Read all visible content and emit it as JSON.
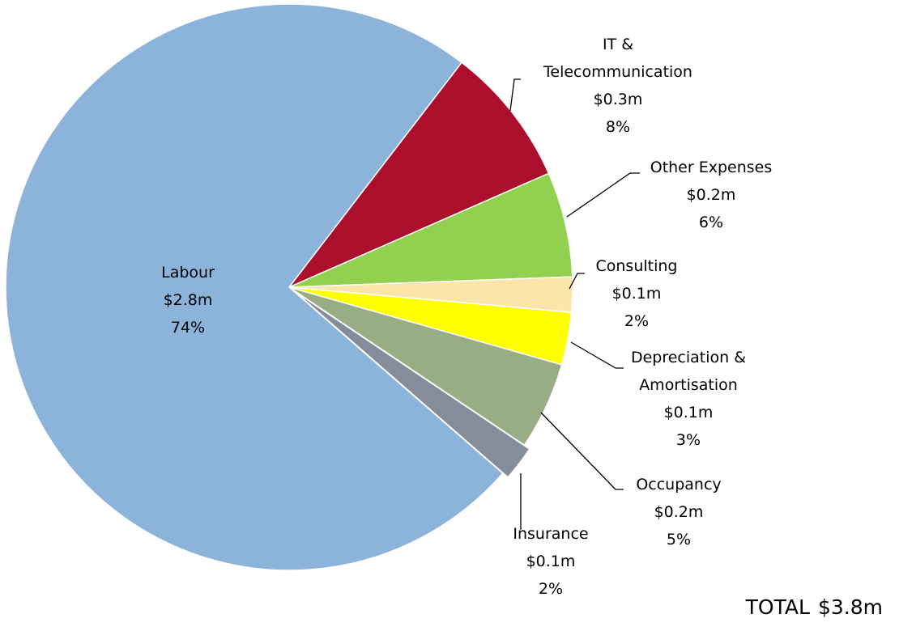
{
  "chart_data": {
    "type": "pie",
    "categories": [
      "Labour",
      "IT & Telecommunication",
      "Other Expenses",
      "Consulting",
      "Depreciation & Amortisation",
      "Occupancy",
      "Insurance"
    ],
    "values": [
      74,
      8,
      6,
      2,
      3,
      5,
      2
    ],
    "value_labels": [
      "74%",
      "8%",
      "6%",
      "2%",
      "3%",
      "5%",
      "2%"
    ],
    "amounts": [
      2.8,
      0.3,
      0.2,
      0.1,
      0.1,
      0.2,
      0.1
    ],
    "amount_labels": [
      "$2.8m",
      "$0.3m",
      "$0.2m",
      "$0.1m",
      "$0.1m",
      "$0.2m",
      "$0.1m"
    ],
    "colors": [
      "#8cb3da",
      "#ac0f2c",
      "#92d050",
      "#fde4a8",
      "#ffff00",
      "#98ad86",
      "#868d9a"
    ],
    "total_label": "TOTAL",
    "total": 3.8,
    "total_value_label": "$3.8m"
  }
}
